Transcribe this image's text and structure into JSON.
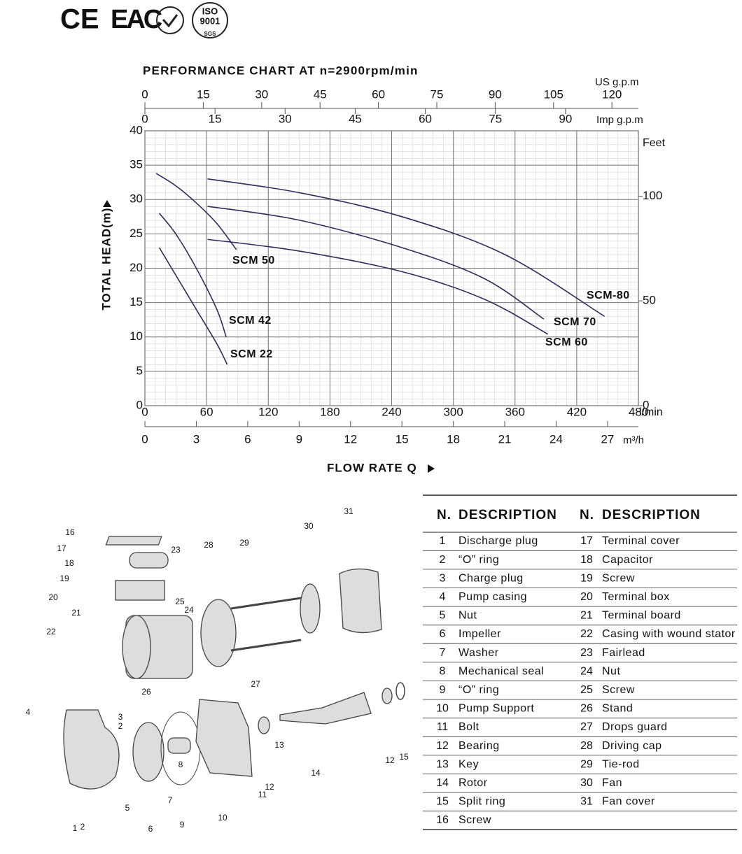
{
  "logos": {
    "ce": "CE",
    "eac": "EAC",
    "iso": "ISO",
    "iso_number": "9001",
    "sgs": "SGS"
  },
  "chart_data": {
    "type": "line",
    "title": "PERFORMANCE CHART AT n=2900rpm/min",
    "ylabel": "TOTAL HEAD(m)",
    "xlabel": "FLOW RATE Q",
    "xunit": "l/min",
    "xlim": [
      0,
      480
    ],
    "xticks": [
      0,
      60,
      120,
      180,
      240,
      300,
      360,
      420,
      480
    ],
    "ylim": [
      0,
      40
    ],
    "yticks": [
      0,
      5,
      10,
      15,
      20,
      25,
      30,
      35,
      40
    ],
    "y2label": "Feet",
    "y2lim": [
      0,
      131.2
    ],
    "y2ticks": [
      0,
      50,
      100
    ],
    "extra_x_axes": [
      {
        "label": "US g.p.m",
        "xlim": [
          0,
          126.8
        ],
        "xticks": [
          0,
          15,
          30,
          45,
          60,
          75,
          90,
          105,
          120
        ],
        "side": "top"
      },
      {
        "label": "Imp g.p.m",
        "xlim": [
          0,
          105.6
        ],
        "xticks": [
          0,
          15,
          30,
          45,
          60,
          75,
          90
        ],
        "side": "top-inner"
      },
      {
        "label": "m³/h",
        "xlim": [
          0,
          28.8
        ],
        "xticks": [
          0,
          3,
          6,
          9,
          12,
          15,
          18,
          21,
          24,
          27
        ],
        "side": "bottom"
      }
    ],
    "grid": true,
    "series": [
      {
        "name": "SCM 22",
        "color": "#2e2d5e",
        "x": [
          14,
          30,
          50,
          70,
          80
        ],
        "values": [
          23,
          19,
          14,
          9,
          6
        ]
      },
      {
        "name": "SCM 42",
        "color": "#2e2d5e",
        "x": [
          14,
          30,
          50,
          70,
          79
        ],
        "values": [
          28,
          25,
          20,
          14,
          10
        ]
      },
      {
        "name": "SCM 50",
        "color": "#2e2d5e",
        "x": [
          11,
          30,
          50,
          70,
          89
        ],
        "values": [
          33.8,
          32,
          29.5,
          26.5,
          22.7
        ]
      },
      {
        "name": "SCM 60",
        "color": "#2e2d5e",
        "x": [
          61,
          150,
          250,
          330,
          392
        ],
        "values": [
          24.2,
          22.5,
          19.5,
          15.5,
          10.4
        ]
      },
      {
        "name": "SCM 70",
        "color": "#2e2d5e",
        "x": [
          61,
          150,
          250,
          330,
          388
        ],
        "values": [
          29,
          27,
          23,
          18.5,
          12.6
        ]
      },
      {
        "name": "SCM-80",
        "color": "#2e2d5e",
        "x": [
          61,
          150,
          250,
          350,
          447
        ],
        "values": [
          33,
          31,
          27.5,
          22,
          13
        ]
      }
    ]
  },
  "diagram": {
    "callouts": [
      "16",
      "17",
      "18",
      "19",
      "20",
      "21",
      "22",
      "23",
      "25",
      "24",
      "28",
      "29",
      "30",
      "31",
      "27",
      "26",
      "4",
      "3",
      "2",
      "13",
      "8",
      "12",
      "11",
      "12",
      "15",
      "14",
      "5",
      "7",
      "9",
      "10",
      "6",
      "1",
      "2"
    ]
  },
  "table": {
    "headers": [
      "N.",
      "DESCRIPTION"
    ],
    "rows": [
      [
        1,
        "Discharge plug"
      ],
      [
        2,
        "“O” ring"
      ],
      [
        3,
        "Charge plug"
      ],
      [
        4,
        "Pump casing"
      ],
      [
        5,
        "Nut"
      ],
      [
        6,
        "Impeller"
      ],
      [
        7,
        "Washer"
      ],
      [
        8,
        "Mechanical seal"
      ],
      [
        9,
        "“O” ring"
      ],
      [
        10,
        "Pump Support"
      ],
      [
        11,
        "Bolt"
      ],
      [
        12,
        "Bearing"
      ],
      [
        13,
        "Key"
      ],
      [
        14,
        "Rotor"
      ],
      [
        15,
        "Split ring"
      ],
      [
        16,
        "Screw"
      ],
      [
        17,
        "Terminal cover"
      ],
      [
        18,
        "Capacitor"
      ],
      [
        19,
        "Screw"
      ],
      [
        20,
        "Terminal box"
      ],
      [
        21,
        "Terminal board"
      ],
      [
        22,
        "Casing with wound stator"
      ],
      [
        23,
        "Fairlead"
      ],
      [
        24,
        "Nut"
      ],
      [
        25,
        "Screw"
      ],
      [
        26,
        "Stand"
      ],
      [
        27,
        "Drops guard"
      ],
      [
        28,
        "Driving cap"
      ],
      [
        29,
        "Tie-rod"
      ],
      [
        30,
        "Fan"
      ],
      [
        31,
        "Fan cover"
      ]
    ]
  }
}
